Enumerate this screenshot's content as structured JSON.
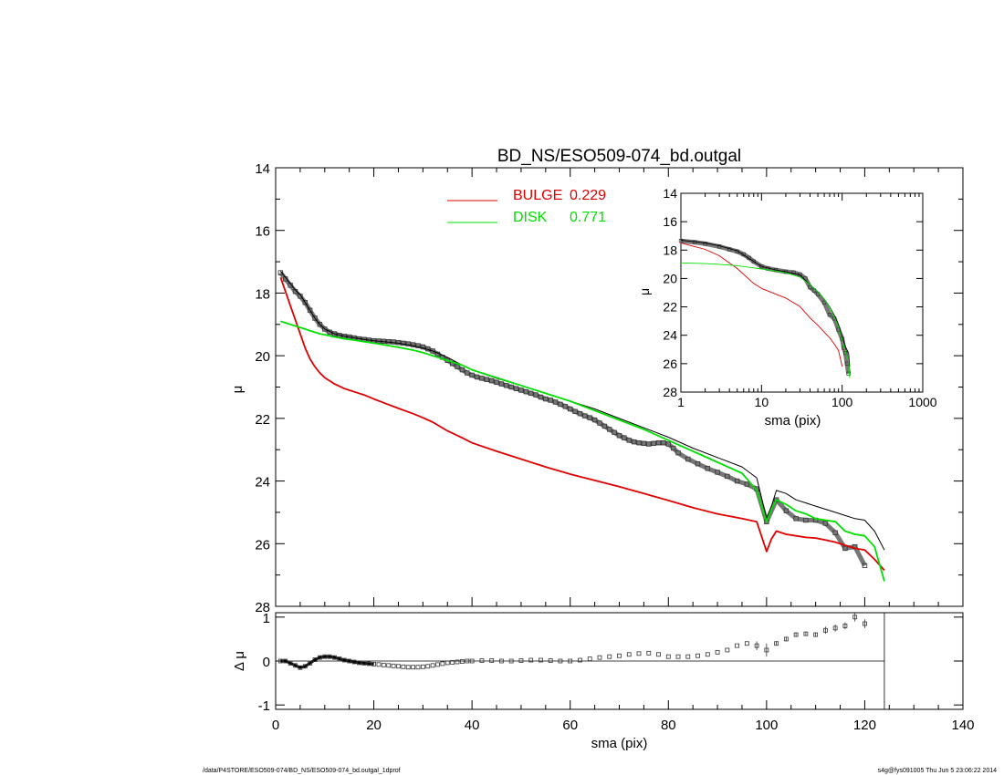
{
  "footer": {
    "path": "/data/P4STORE/ESO509-074/BD_NS/ESO509-074_bd.outgal_1dprof",
    "stamp": "s4g@fys091005  Thu Jun  5 23:06:22 2014"
  },
  "chart_data": [
    {
      "type": "line",
      "panel": "main",
      "title": "BD_NS/ESO509-074_bd.outgal",
      "xlabel": "",
      "ylabel": "μ",
      "xlim": [
        0,
        140
      ],
      "ylim": [
        28,
        14
      ],
      "y_inverted": true,
      "yticks": [
        14,
        16,
        18,
        20,
        22,
        24,
        26,
        28
      ],
      "legend": {
        "placement": "top-center",
        "entries": [
          {
            "label": "BULGE",
            "value": "0.229",
            "color": "#e00000"
          },
          {
            "label": "DISK",
            "value": "0.771",
            "color": "#00e000"
          }
        ]
      },
      "series": [
        {
          "role": "observed",
          "marker": "square",
          "color": "#555555",
          "x": [
            1,
            2,
            3,
            4,
            5,
            6,
            7,
            8,
            9,
            10,
            11,
            12,
            13,
            14,
            15,
            16,
            17,
            18,
            19,
            20,
            21,
            22,
            23,
            24,
            25,
            26,
            27,
            28,
            29,
            30,
            31,
            32,
            33,
            34,
            35,
            36,
            37,
            38,
            39,
            40,
            41,
            42,
            43,
            44,
            45,
            46,
            47,
            48,
            49,
            50,
            51,
            52,
            53,
            54,
            55,
            56,
            57,
            58,
            59,
            60,
            61,
            62,
            63,
            64,
            65,
            66,
            67,
            68,
            69,
            70,
            71,
            72,
            73,
            74,
            75,
            76,
            77,
            78,
            79,
            80,
            81,
            82,
            84,
            86,
            88,
            90,
            92,
            94,
            96,
            98,
            100,
            102,
            104,
            106,
            108,
            110,
            112,
            114,
            116,
            118,
            120
          ],
          "y": [
            17.35,
            17.55,
            17.75,
            17.95,
            18.1,
            18.3,
            18.55,
            18.8,
            19.0,
            19.15,
            19.25,
            19.3,
            19.35,
            19.38,
            19.4,
            19.43,
            19.46,
            19.48,
            19.5,
            19.52,
            19.53,
            19.54,
            19.55,
            19.56,
            19.58,
            19.6,
            19.62,
            19.65,
            19.68,
            19.72,
            19.78,
            19.85,
            19.95,
            20.05,
            20.15,
            20.25,
            20.35,
            20.45,
            20.55,
            20.62,
            20.68,
            20.72,
            20.76,
            20.8,
            20.85,
            20.9,
            20.95,
            21.0,
            21.05,
            21.1,
            21.15,
            21.2,
            21.25,
            21.32,
            21.38,
            21.42,
            21.48,
            21.55,
            21.62,
            21.7,
            21.78,
            21.85,
            21.92,
            21.98,
            22.05,
            22.15,
            22.25,
            22.35,
            22.45,
            22.55,
            22.62,
            22.7,
            22.75,
            22.78,
            22.8,
            22.82,
            22.8,
            22.78,
            22.78,
            22.82,
            22.95,
            23.1,
            23.3,
            23.45,
            23.6,
            23.72,
            23.85,
            24.0,
            24.1,
            24.25,
            25.3,
            24.6,
            24.95,
            25.2,
            25.25,
            25.25,
            25.35,
            25.65,
            26.15,
            26.1,
            26.7
          ]
        },
        {
          "role": "model-total",
          "color": "#000000",
          "x": [
            1,
            2,
            3,
            4,
            5,
            6,
            7,
            8,
            9,
            10,
            12,
            14,
            16,
            18,
            20,
            22,
            25,
            28,
            30,
            32,
            35,
            38,
            40,
            45,
            50,
            55,
            60,
            65,
            70,
            75,
            80,
            85,
            90,
            95,
            98,
            100,
            101,
            102,
            104,
            106,
            108,
            110,
            112,
            114,
            116,
            118,
            120,
            122,
            124
          ],
          "y": [
            17.3,
            17.5,
            17.7,
            17.9,
            18.05,
            18.3,
            18.55,
            18.8,
            19.0,
            19.15,
            19.3,
            19.38,
            19.43,
            19.48,
            19.52,
            19.55,
            19.6,
            19.68,
            19.75,
            19.85,
            20.05,
            20.3,
            20.45,
            20.72,
            20.95,
            21.2,
            21.45,
            21.7,
            22.0,
            22.3,
            22.6,
            22.95,
            23.25,
            23.55,
            23.9,
            25.2,
            24.8,
            24.3,
            24.4,
            24.6,
            24.7,
            24.8,
            24.9,
            25.0,
            25.1,
            25.2,
            25.25,
            25.6,
            26.2
          ]
        },
        {
          "name": "BULGE",
          "role": "bulge",
          "color": "#e00000",
          "x": [
            1,
            2,
            3,
            4,
            5,
            6,
            7,
            8,
            9,
            10,
            12,
            14,
            16,
            18,
            20,
            22,
            25,
            28,
            30,
            32,
            35,
            38,
            40,
            45,
            50,
            55,
            60,
            65,
            70,
            75,
            80,
            85,
            90,
            95,
            98,
            100,
            101,
            102,
            104,
            106,
            108,
            110,
            112,
            114,
            116,
            118,
            120,
            122,
            124
          ],
          "y": [
            17.5,
            17.95,
            18.4,
            18.85,
            19.3,
            19.75,
            20.1,
            20.35,
            20.55,
            20.7,
            20.9,
            21.05,
            21.15,
            21.25,
            21.38,
            21.5,
            21.68,
            21.85,
            21.98,
            22.12,
            22.4,
            22.62,
            22.78,
            23.05,
            23.3,
            23.55,
            23.78,
            23.98,
            24.18,
            24.4,
            24.62,
            24.85,
            25.05,
            25.2,
            25.3,
            26.25,
            25.85,
            25.6,
            25.7,
            25.75,
            25.8,
            25.82,
            25.88,
            25.95,
            26.05,
            26.15,
            26.2,
            26.5,
            26.85
          ]
        },
        {
          "name": "DISK",
          "role": "disk",
          "color": "#00e000",
          "x": [
            1,
            2,
            3,
            4,
            5,
            6,
            7,
            8,
            9,
            10,
            12,
            14,
            16,
            18,
            20,
            22,
            25,
            28,
            30,
            32,
            35,
            38,
            40,
            45,
            50,
            55,
            60,
            65,
            70,
            75,
            80,
            85,
            90,
            95,
            98,
            100,
            101,
            102,
            104,
            106,
            108,
            110,
            112,
            114,
            116,
            118,
            120,
            122,
            124
          ],
          "y": [
            18.9,
            18.95,
            19.0,
            19.05,
            19.1,
            19.15,
            19.2,
            19.25,
            19.3,
            19.33,
            19.4,
            19.46,
            19.5,
            19.55,
            19.6,
            19.65,
            19.73,
            19.82,
            19.9,
            20.0,
            20.15,
            20.3,
            20.45,
            20.7,
            20.95,
            21.2,
            21.45,
            21.75,
            22.05,
            22.35,
            22.7,
            23.05,
            23.4,
            23.75,
            24.3,
            25.3,
            24.9,
            24.6,
            24.75,
            24.95,
            25.05,
            25.2,
            25.25,
            25.3,
            25.6,
            25.7,
            25.75,
            26.1,
            27.2
          ]
        }
      ]
    },
    {
      "type": "scatter",
      "panel": "residuals",
      "xlabel": "sma (pix)",
      "ylabel": "Δ μ",
      "xlim": [
        0,
        140
      ],
      "ylim": [
        -1.1,
        1.1
      ],
      "xticks": [
        0,
        20,
        40,
        60,
        80,
        100,
        120,
        140
      ],
      "yticks": [
        -1,
        0,
        1
      ],
      "x_cut": 124,
      "series": [
        {
          "role": "residual",
          "marker": "square",
          "color": "#555555",
          "x": [
            1,
            2,
            3,
            4,
            5,
            6,
            7,
            8,
            9,
            10,
            11,
            12,
            13,
            14,
            15,
            16,
            17,
            18,
            19,
            20,
            21,
            22,
            23,
            24,
            25,
            26,
            27,
            28,
            29,
            30,
            31,
            32,
            33,
            34,
            35,
            36,
            37,
            38,
            39,
            40,
            42,
            44,
            46,
            48,
            50,
            52,
            54,
            56,
            58,
            60,
            62,
            64,
            66,
            68,
            70,
            72,
            74,
            76,
            78,
            80,
            82,
            84,
            86,
            88,
            90,
            92,
            94,
            96,
            98,
            100,
            102,
            104,
            106,
            108,
            110,
            112,
            114,
            116,
            118,
            120
          ],
          "y": [
            0.0,
            0.0,
            -0.05,
            -0.1,
            -0.15,
            -0.12,
            -0.05,
            0.03,
            0.08,
            0.1,
            0.1,
            0.08,
            0.05,
            0.02,
            0.0,
            -0.02,
            -0.04,
            -0.05,
            -0.06,
            -0.07,
            -0.08,
            -0.09,
            -0.1,
            -0.11,
            -0.12,
            -0.13,
            -0.14,
            -0.14,
            -0.14,
            -0.13,
            -0.12,
            -0.1,
            -0.08,
            -0.06,
            -0.04,
            -0.03,
            -0.02,
            -0.01,
            0.0,
            0.0,
            0.01,
            0.01,
            0.0,
            0.0,
            0.01,
            0.02,
            0.02,
            0.01,
            0.0,
            0.0,
            0.02,
            0.05,
            0.08,
            0.1,
            0.12,
            0.15,
            0.17,
            0.18,
            0.15,
            0.1,
            0.1,
            0.1,
            0.12,
            0.15,
            0.2,
            0.25,
            0.35,
            0.4,
            0.35,
            0.25,
            0.4,
            0.5,
            0.6,
            0.62,
            0.6,
            0.7,
            0.75,
            0.8,
            1.0,
            0.85
          ],
          "err": [
            0,
            0,
            0,
            0,
            0,
            0,
            0,
            0,
            0,
            0,
            0,
            0,
            0,
            0,
            0,
            0,
            0,
            0,
            0,
            0,
            0,
            0,
            0,
            0,
            0,
            0,
            0,
            0,
            0,
            0,
            0,
            0,
            0,
            0,
            0,
            0,
            0,
            0,
            0,
            0,
            0,
            0,
            0,
            0,
            0,
            0,
            0,
            0,
            0,
            0,
            0,
            0,
            0,
            0,
            0,
            0,
            0,
            0,
            0,
            0,
            0,
            0,
            0,
            0,
            0,
            0,
            0,
            0,
            0.1,
            0.15,
            0.05,
            0.05,
            0.05,
            0.05,
            0.05,
            0.08,
            0.08,
            0.08,
            0.1,
            0.1
          ]
        }
      ]
    },
    {
      "type": "line",
      "panel": "inset",
      "xlabel": "sma (pix)",
      "ylabel": "μ",
      "xscale": "log",
      "xlim": [
        1,
        1000
      ],
      "ylim": [
        28,
        14
      ],
      "y_inverted": true,
      "xtick_labels": [
        "1",
        "10",
        "100",
        "1000"
      ],
      "ytick_labels": [
        "14",
        "16",
        "18",
        "20",
        "22",
        "24",
        "26",
        "28"
      ],
      "series": [
        {
          "role": "observed",
          "marker": "square",
          "color": "#555555",
          "x": [
            1,
            1.5,
            2,
            3,
            4,
            5,
            6,
            7,
            8,
            10,
            12,
            15,
            20,
            25,
            30,
            35,
            40,
            45,
            50,
            60,
            70,
            80,
            90,
            100,
            105,
            110,
            115,
            120
          ],
          "y": [
            17.35,
            17.45,
            17.55,
            17.75,
            17.95,
            18.1,
            18.3,
            18.55,
            18.8,
            19.15,
            19.3,
            19.4,
            19.52,
            19.58,
            19.72,
            20.0,
            20.62,
            20.85,
            21.1,
            21.7,
            22.55,
            22.82,
            23.6,
            24.25,
            24.9,
            25.25,
            26.0,
            26.7
          ]
        },
        {
          "role": "model-total",
          "color": "#000000",
          "x": [
            1,
            2,
            3,
            5,
            8,
            10,
            15,
            20,
            30,
            40,
            50,
            60,
            70,
            80,
            90,
            100,
            110,
            120,
            124
          ],
          "y": [
            17.3,
            17.5,
            17.7,
            18.05,
            18.8,
            19.15,
            19.4,
            19.52,
            19.75,
            20.45,
            20.95,
            21.45,
            22.0,
            22.6,
            23.25,
            24.1,
            24.8,
            25.25,
            26.2
          ]
        },
        {
          "name": "BULGE",
          "role": "bulge",
          "color": "#e00000",
          "x": [
            1,
            2,
            3,
            5,
            8,
            10,
            15,
            20,
            30,
            40,
            50,
            60,
            70,
            80,
            90,
            100
          ],
          "y": [
            17.5,
            17.95,
            18.4,
            19.3,
            20.35,
            20.7,
            21.1,
            21.38,
            21.98,
            22.78,
            23.3,
            23.78,
            24.18,
            24.62,
            25.05,
            26.2
          ]
        },
        {
          "name": "DISK",
          "role": "disk",
          "color": "#00e000",
          "x": [
            1,
            2,
            3,
            5,
            8,
            10,
            15,
            20,
            30,
            40,
            50,
            60,
            70,
            80,
            90,
            100,
            110,
            120,
            124
          ],
          "y": [
            18.9,
            18.95,
            19.0,
            19.1,
            19.25,
            19.33,
            19.48,
            19.6,
            19.9,
            20.45,
            20.95,
            21.45,
            22.05,
            22.7,
            23.4,
            24.3,
            25.2,
            25.75,
            27.0
          ]
        }
      ]
    }
  ]
}
